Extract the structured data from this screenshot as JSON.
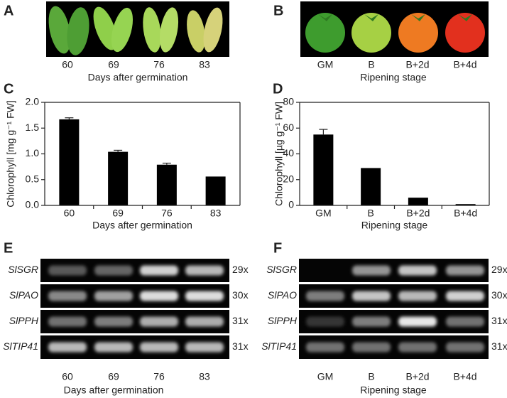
{
  "chart_data": [
    {
      "type": "bar",
      "label": "C",
      "title": "",
      "ylabel": "Chlorophyll [mg g⁻¹ FW]",
      "xlabel": "Days after germination",
      "categories": [
        "60",
        "69",
        "76",
        "83"
      ],
      "values": [
        1.67,
        1.04,
        0.79,
        0.56
      ],
      "errors": [
        0.03,
        0.03,
        0.03,
        null
      ],
      "color": "#000000",
      "ylim": [
        0,
        2
      ],
      "yticks": [
        {
          "value": 0,
          "label": "0.0"
        },
        {
          "value": 0.5,
          "label": "0.5"
        },
        {
          "value": 1,
          "label": "1.0"
        },
        {
          "value": 1.5,
          "label": "1.5"
        },
        {
          "value": 2,
          "label": "2.0"
        }
      ]
    },
    {
      "type": "bar",
      "label": "D",
      "title": "",
      "ylabel": "Chlorophyll [µg g⁻¹ FW]",
      "xlabel": "Ripening stage",
      "categories": [
        "GM",
        "B",
        "B+2d",
        "B+4d"
      ],
      "values": [
        55,
        29,
        6,
        1
      ],
      "errors": [
        4,
        null,
        null,
        null
      ],
      "color": "#000000",
      "ylim": [
        0,
        80
      ],
      "yticks": [
        0,
        20,
        40,
        60,
        80
      ]
    }
  ],
  "photos": [
    {
      "label": "A",
      "categories": [
        "60",
        "69",
        "76",
        "83"
      ],
      "xlabel": "Days after germination"
    },
    {
      "label": "B",
      "categories": [
        "GM",
        "B",
        "B+2d",
        "B+4d"
      ],
      "xlabel": "Ripening stage"
    }
  ],
  "gels": [
    {
      "label": "E",
      "genes": [
        "SlSGR",
        "SlPAO",
        "SlPPH",
        "SlTIP41"
      ],
      "cycles": [
        "29x",
        "30x",
        "31x",
        "31x"
      ],
      "lanes": [
        "60",
        "69",
        "76",
        "83"
      ],
      "xlabel": "Days after germination"
    },
    {
      "label": "F",
      "genes": [
        "SlSGR",
        "SlPAO",
        "SlPPH",
        "SlTIP41"
      ],
      "cycles": [
        "29x",
        "30x",
        "31x",
        "31x"
      ],
      "lanes": [
        "GM",
        "B",
        "B+2d",
        "B+4d"
      ],
      "xlabel": "Ripening stage"
    }
  ]
}
